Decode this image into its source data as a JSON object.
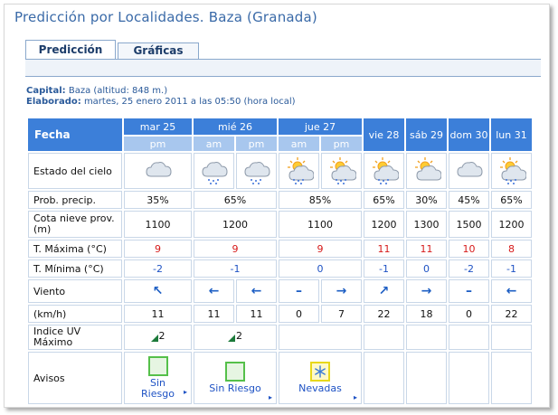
{
  "page": {
    "title": "Predicción por Localidades. Baza (Granada)",
    "tabs": [
      {
        "label": "Predicción",
        "active": true
      },
      {
        "label": "Gráficas",
        "active": false
      }
    ],
    "meta": {
      "capital_label": "Capital:",
      "capital_value": "Baza (altitud: 848 m.)",
      "elaborado_label": "Elaborado:",
      "elaborado_value": "martes, 25 enero 2011 a las 05:50 (hora local)"
    }
  },
  "table": {
    "fecha_label": "Fecha",
    "days": [
      {
        "label": "mar 25",
        "periods": [
          "pm"
        ]
      },
      {
        "label": "mié 26",
        "periods": [
          "am",
          "pm"
        ]
      },
      {
        "label": "jue 27",
        "periods": [
          "am",
          "pm"
        ]
      },
      {
        "label": "vie 28",
        "periods": []
      },
      {
        "label": "sáb 29",
        "periods": []
      },
      {
        "label": "dom 30",
        "periods": []
      },
      {
        "label": "lun 31",
        "periods": []
      }
    ],
    "row_labels": {
      "sky": "Estado del cielo",
      "precip": "Prob. precip.",
      "snow": "Cota nieve prov.(m)",
      "tmax": "T. Máxima (°C)",
      "tmin": "T. Mínima (°C)",
      "wind": "Viento",
      "kmh": "(km/h)",
      "uv": "Indice UV Máximo",
      "warnings": "Avisos"
    },
    "sky_icons": [
      "cloud-icon",
      "rain-cloud-icon",
      "rain-cloud-icon",
      "sun-rain-cloud-icon",
      "sun-rain-cloud-icon",
      "sun-rain-cloud-icon",
      "sun-cloud-icon",
      "cloud-icon",
      "sun-rain-cloud-icon"
    ],
    "precip": [
      "35%",
      "65%",
      "85%",
      "65%",
      "30%",
      "45%",
      "65%"
    ],
    "snow": [
      "1100",
      "1200",
      "1100",
      "1200",
      "1300",
      "1500",
      "1200"
    ],
    "tmax": [
      "9",
      "9",
      "9",
      "11",
      "11",
      "10",
      "8"
    ],
    "tmin": [
      "-2",
      "-1",
      "0",
      "-1",
      "0",
      "-2",
      "-1"
    ],
    "wind_dirs": [
      "arrow-up-left-icon",
      "arrow-left-icon",
      "arrow-left-icon",
      "calm-dash-icon",
      "arrow-right-icon",
      "arrow-up-right-icon",
      "arrow-right-icon",
      "calm-dash-icon",
      "arrow-left-icon"
    ],
    "wind_glyphs": [
      "↖",
      "←",
      "←",
      "–",
      "→",
      "↗",
      "→",
      "–",
      "←"
    ],
    "kmh": [
      "11",
      "11",
      "11",
      "0",
      "7",
      "22",
      "18",
      "0",
      "22"
    ],
    "uv": [
      "2",
      "2"
    ],
    "warnings": [
      {
        "text": "Sin Riesgo",
        "level": "green"
      },
      {
        "text": "Sin Riesgo",
        "level": "green"
      },
      {
        "text": "Nevadas",
        "level": "yellow"
      }
    ],
    "warning_arrow": "▸"
  }
}
